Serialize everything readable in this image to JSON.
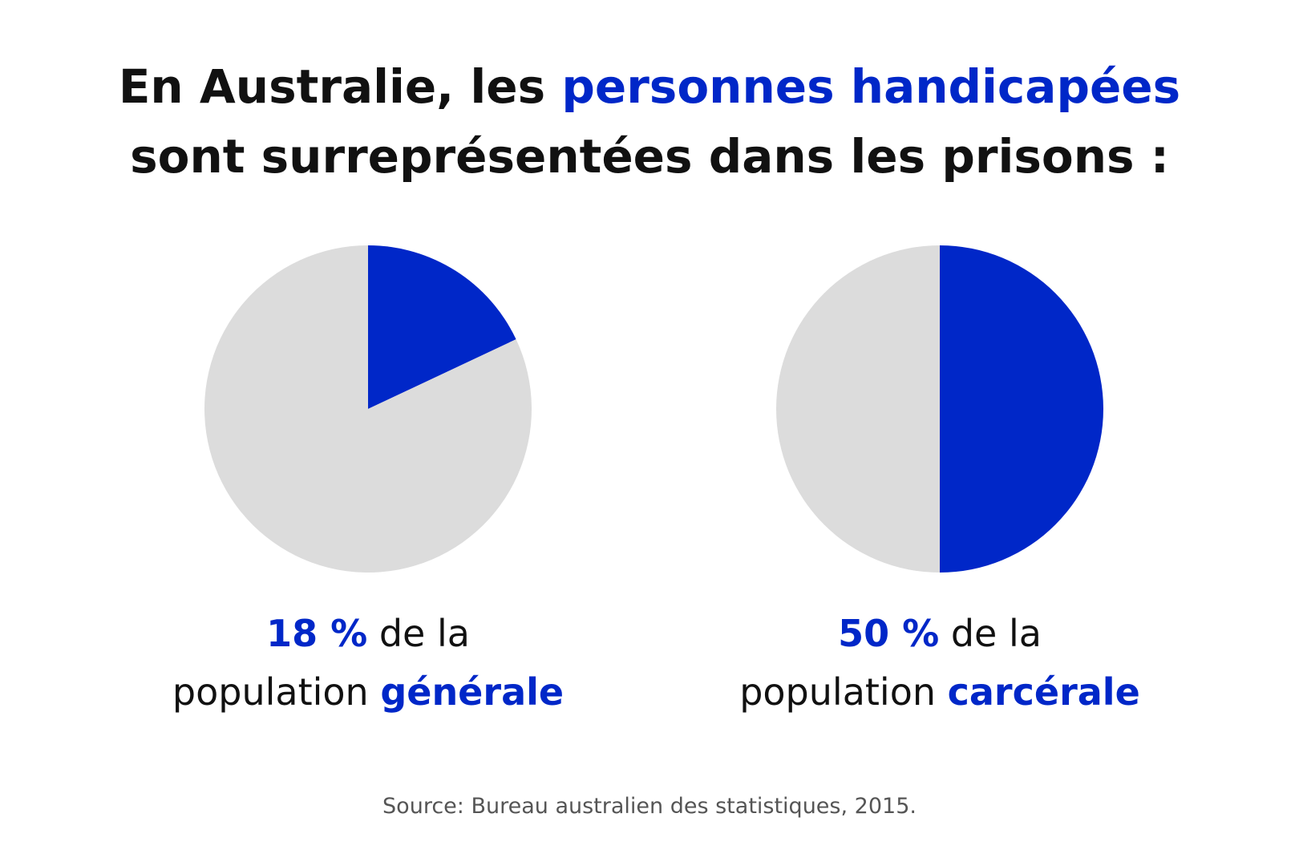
{
  "header": {
    "title_line1": [
      "En Australie, les ",
      "personnes handicapées"
    ],
    "title_line2": "sont surreprésentées dans les prisons :"
  },
  "chart_data": [
    {
      "type": "pie",
      "values": [
        18,
        82
      ],
      "value_labels": [
        "18 %",
        null
      ],
      "colors": [
        "#0027c8",
        "#dcdcdc"
      ],
      "caption": {
        "line1": " de la",
        "line2": [
          "population ",
          "générale"
        ]
      }
    },
    {
      "type": "pie",
      "values": [
        50,
        50
      ],
      "value_labels": [
        "50 %",
        null
      ],
      "colors": [
        "#0027c8",
        "#dcdcdc"
      ],
      "caption": {
        "line1": " de la",
        "line2": [
          "population ",
          "carcérale"
        ]
      }
    }
  ],
  "source": "Source: Bureau australien des statistiques, 2015."
}
